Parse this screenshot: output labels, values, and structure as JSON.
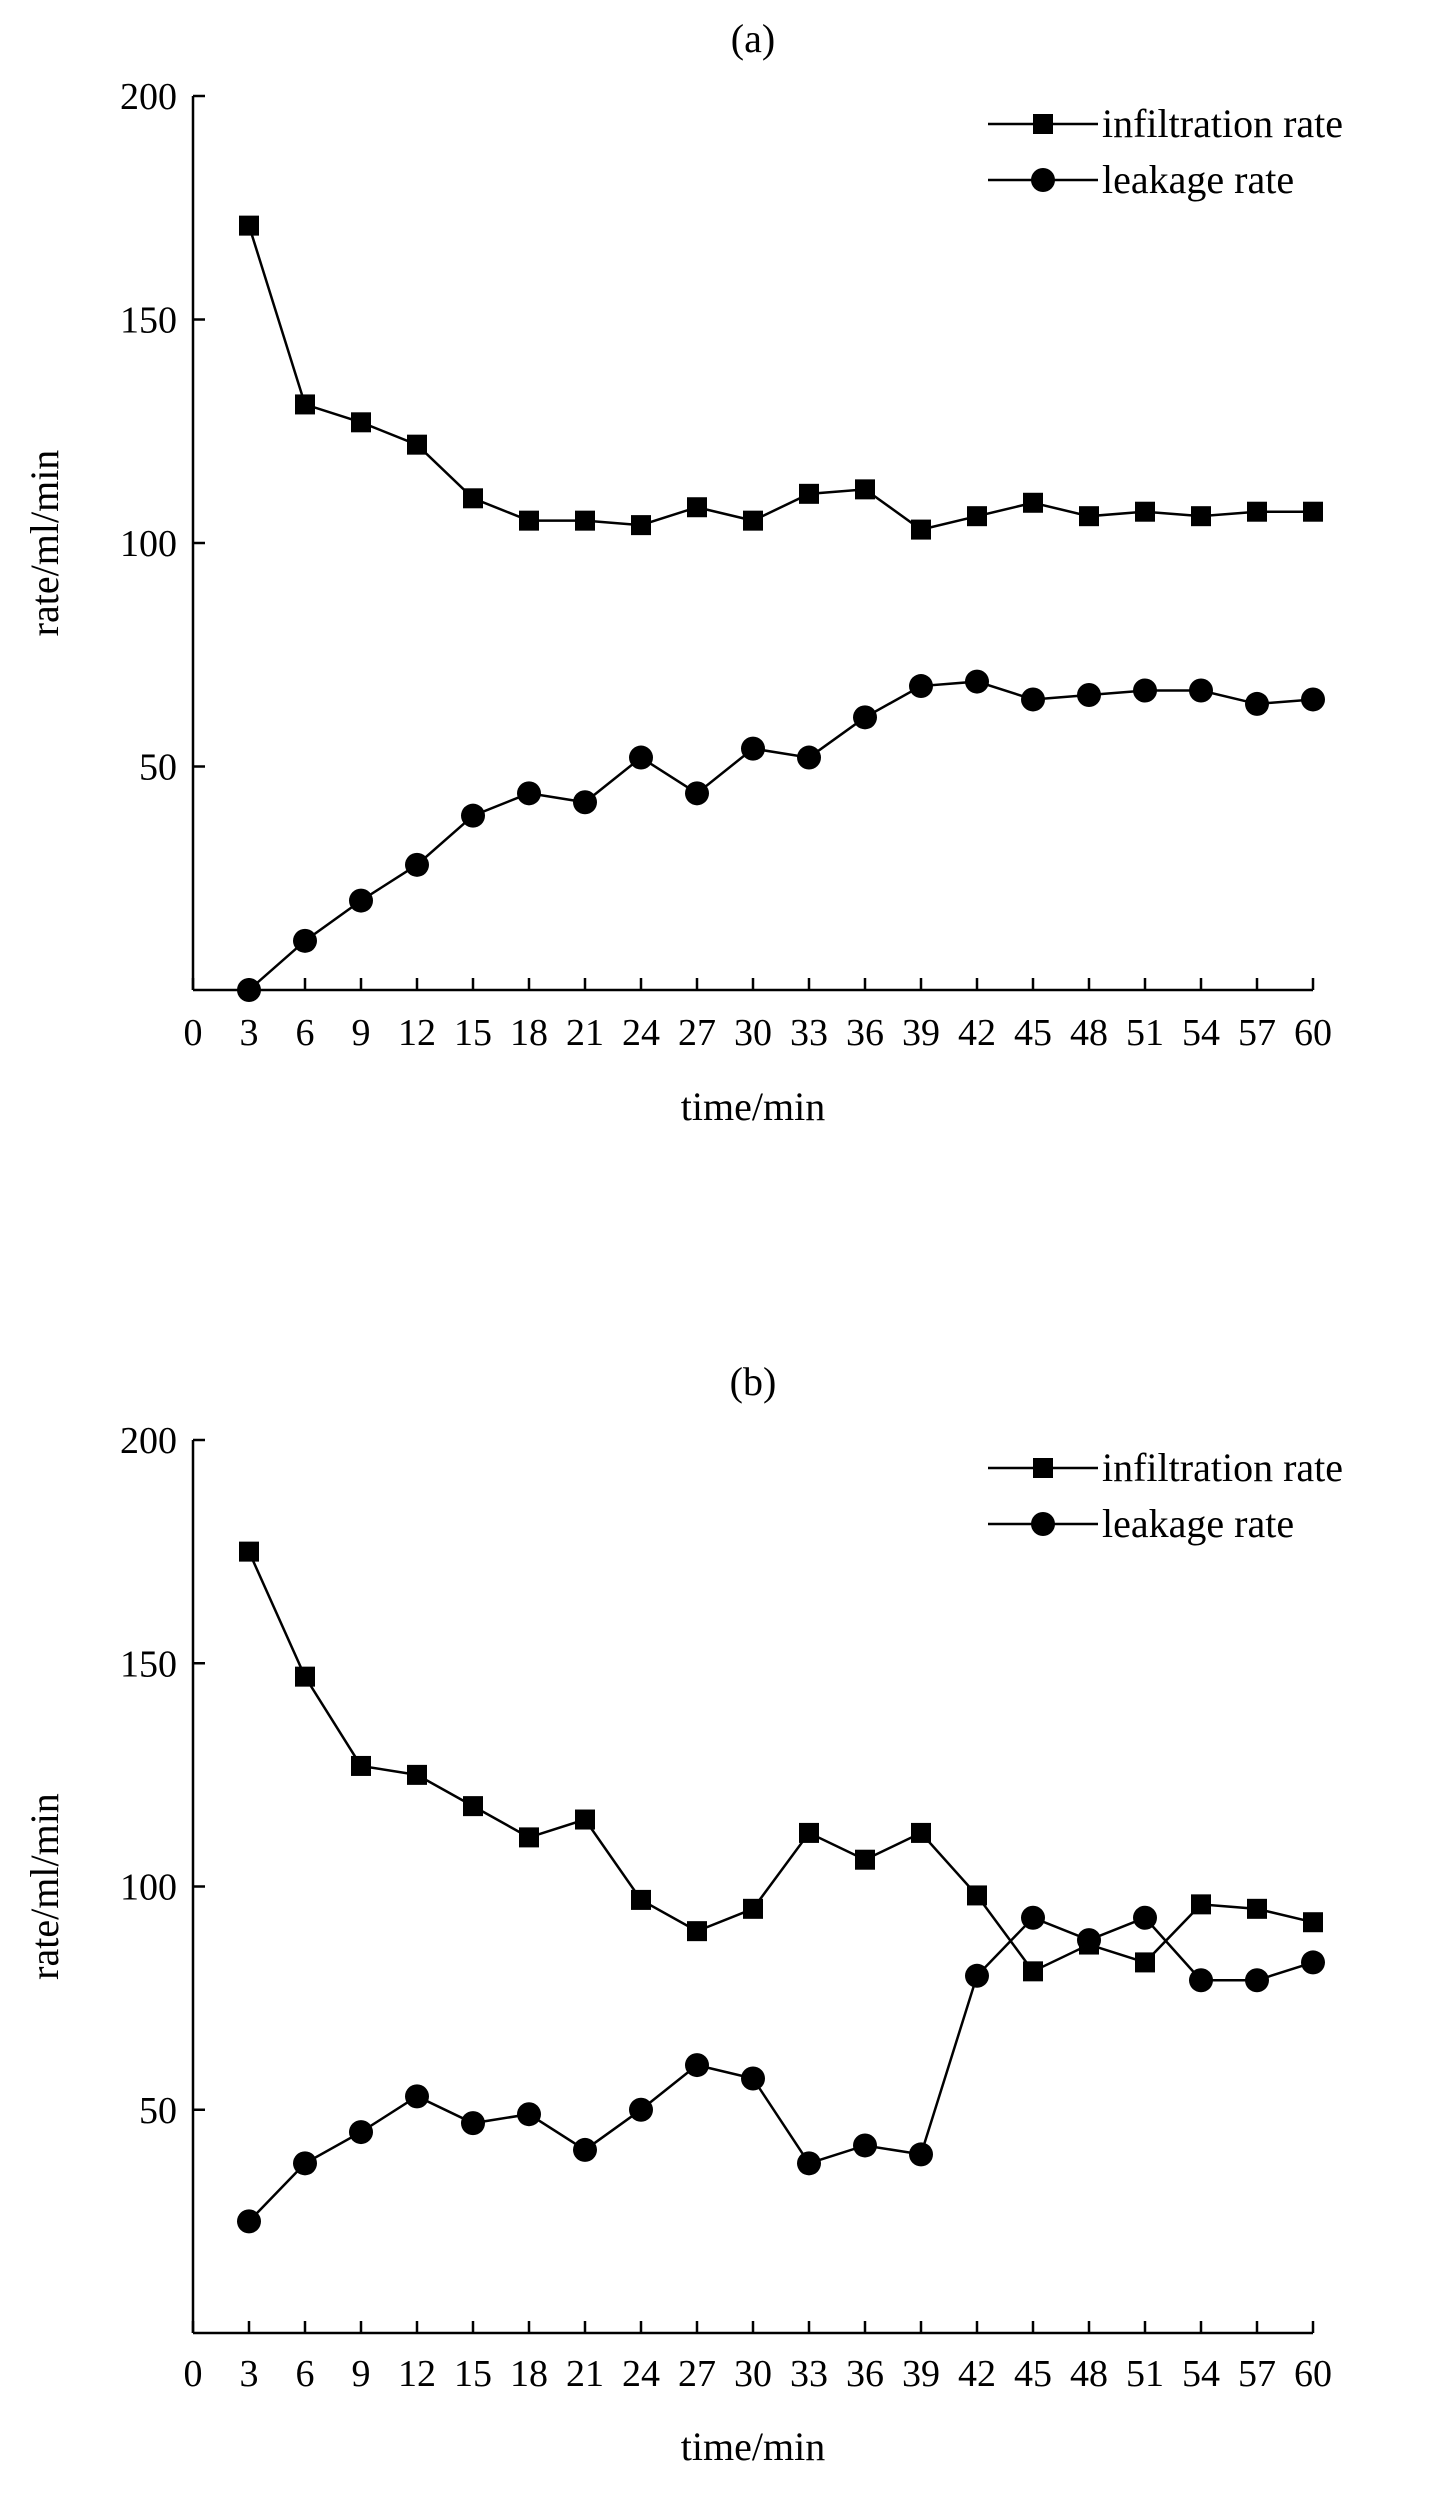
{
  "colors": {
    "line": "#000000",
    "background": "#ffffff"
  },
  "chart_data": [
    {
      "type": "line",
      "title": "(a)",
      "xlabel": "time/min",
      "ylabel": "rate/ml/min",
      "xlim": [
        0,
        60
      ],
      "ylim": [
        0,
        200
      ],
      "xticks": [
        "0",
        "3",
        "6",
        "9",
        "12",
        "15",
        "18",
        "21",
        "24",
        "27",
        "30",
        "33",
        "36",
        "39",
        "42",
        "45",
        "48",
        "51",
        "54",
        "57",
        "60"
      ],
      "yticks": [
        "50",
        "100",
        "150",
        "200"
      ],
      "legend_position": "top-right",
      "x": [
        3,
        6,
        9,
        12,
        15,
        18,
        21,
        24,
        27,
        30,
        33,
        36,
        39,
        42,
        45,
        48,
        51,
        54,
        57,
        60
      ],
      "series": [
        {
          "name": "infiltration rate",
          "marker": "square",
          "values": [
            171,
            131,
            127,
            122,
            110,
            105,
            105,
            104,
            108,
            105,
            111,
            112,
            103,
            106,
            109,
            106,
            107,
            106,
            107,
            107
          ]
        },
        {
          "name": "leakage rate",
          "marker": "circle",
          "values": [
            0,
            11,
            20,
            28,
            39,
            44,
            42,
            52,
            44,
            54,
            52,
            61,
            68,
            69,
            65,
            66,
            67,
            67,
            64,
            65
          ]
        }
      ]
    },
    {
      "type": "line",
      "title": "(b)",
      "xlabel": "time/min",
      "ylabel": "rate/ml/min",
      "xlim": [
        0,
        60
      ],
      "ylim": [
        0,
        200
      ],
      "xticks": [
        "0",
        "3",
        "6",
        "9",
        "12",
        "15",
        "18",
        "21",
        "24",
        "27",
        "30",
        "33",
        "36",
        "39",
        "42",
        "45",
        "48",
        "51",
        "54",
        "57",
        "60"
      ],
      "yticks": [
        "50",
        "100",
        "150",
        "200"
      ],
      "legend_position": "top-right",
      "x": [
        3,
        6,
        9,
        12,
        15,
        18,
        21,
        24,
        27,
        30,
        33,
        36,
        39,
        42,
        45,
        48,
        51,
        54,
        57,
        60
      ],
      "series": [
        {
          "name": "infiltration rate",
          "marker": "square",
          "values": [
            175,
            147,
            127,
            125,
            118,
            111,
            115,
            97,
            90,
            95,
            112,
            106,
            112,
            98,
            81,
            87,
            83,
            96,
            95,
            92
          ]
        },
        {
          "name": "leakage rate",
          "marker": "circle",
          "values": [
            25,
            38,
            45,
            53,
            47,
            49,
            41,
            50,
            60,
            57,
            38,
            42,
            40,
            80,
            93,
            88,
            93,
            79,
            79,
            83
          ]
        }
      ]
    }
  ]
}
